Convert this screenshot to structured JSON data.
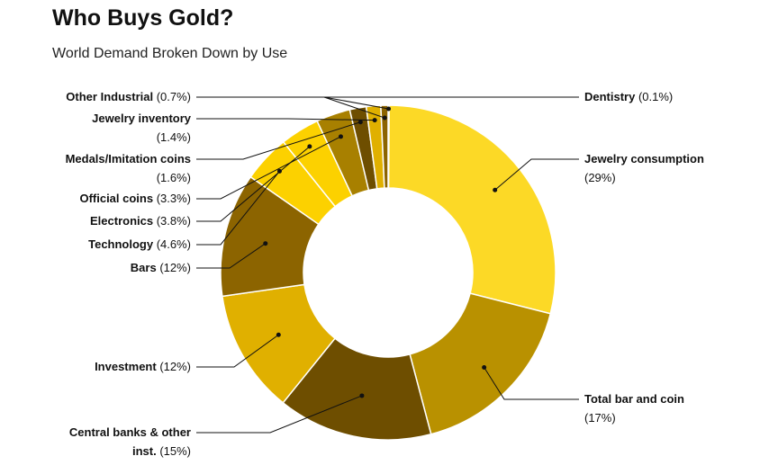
{
  "title": "Who Buys Gold?",
  "subtitle": "World Demand Broken Down by Use",
  "chart_data": {
    "type": "pie",
    "variant": "donut",
    "title": "Who Buys Gold?",
    "subtitle": "World Demand Broken Down by Use",
    "slices": [
      {
        "name": "Dentistry",
        "value": 0.1,
        "pct_label": "(0.1%)",
        "color": "#f3e39a"
      },
      {
        "name": "Jewelry consumption",
        "value": 29,
        "pct_label": "(29%)",
        "color": "#fcd926"
      },
      {
        "name": "Total bar and coin",
        "value": 17,
        "pct_label": "(17%)",
        "color": "#b99100"
      },
      {
        "name": "Central banks & other inst.",
        "value": 15,
        "pct_label": "(15%)",
        "color": "#6e4e00"
      },
      {
        "name": "Investment",
        "value": 12,
        "pct_label": "(12%)",
        "color": "#e0b000"
      },
      {
        "name": "Bars",
        "value": 12,
        "pct_label": "(12%)",
        "color": "#8c6400"
      },
      {
        "name": "Technology",
        "value": 4.6,
        "pct_label": "(4.6%)",
        "color": "#fcd100"
      },
      {
        "name": "Electronics",
        "value": 3.8,
        "pct_label": "(3.8%)",
        "color": "#fcd100"
      },
      {
        "name": "Official coins",
        "value": 3.3,
        "pct_label": "(3.3%)",
        "color": "#a88000"
      },
      {
        "name": "Medals/Imitation coins",
        "value": 1.6,
        "pct_label": "(1.6%)",
        "color": "#6e4e00"
      },
      {
        "name": "Jewelry inventory",
        "value": 1.4,
        "pct_label": "(1.4%)",
        "color": "#e0b000"
      },
      {
        "name": "Other Industrial",
        "value": 0.7,
        "pct_label": "(0.7%)",
        "color": "#8c6400"
      }
    ]
  }
}
